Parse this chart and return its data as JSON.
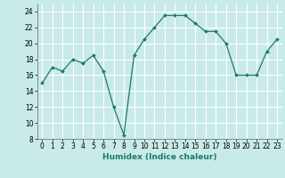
{
  "x": [
    0,
    1,
    2,
    3,
    4,
    5,
    6,
    7,
    8,
    9,
    10,
    11,
    12,
    13,
    14,
    15,
    16,
    17,
    18,
    19,
    20,
    21,
    22,
    23
  ],
  "y": [
    15,
    17,
    16.5,
    18,
    17.5,
    18.5,
    16.5,
    12,
    8.5,
    18.5,
    20.5,
    22,
    23.5,
    23.5,
    23.5,
    22.5,
    21.5,
    21.5,
    20,
    16,
    16,
    16,
    19,
    20.5
  ],
  "line_color": "#1a7a6e",
  "marker_color": "#1a7a6e",
  "bg_color": "#c8eae8",
  "grid_color": "#ffffff",
  "xlabel": "Humidex (Indice chaleur)",
  "ylim": [
    8,
    25
  ],
  "xlim": [
    -0.5,
    23.5
  ],
  "yticks": [
    8,
    10,
    12,
    14,
    16,
    18,
    20,
    22,
    24
  ],
  "xticks": [
    0,
    1,
    2,
    3,
    4,
    5,
    6,
    7,
    8,
    9,
    10,
    11,
    12,
    13,
    14,
    15,
    16,
    17,
    18,
    19,
    20,
    21,
    22,
    23
  ],
  "label_fontsize": 6.5,
  "tick_fontsize": 5.5
}
